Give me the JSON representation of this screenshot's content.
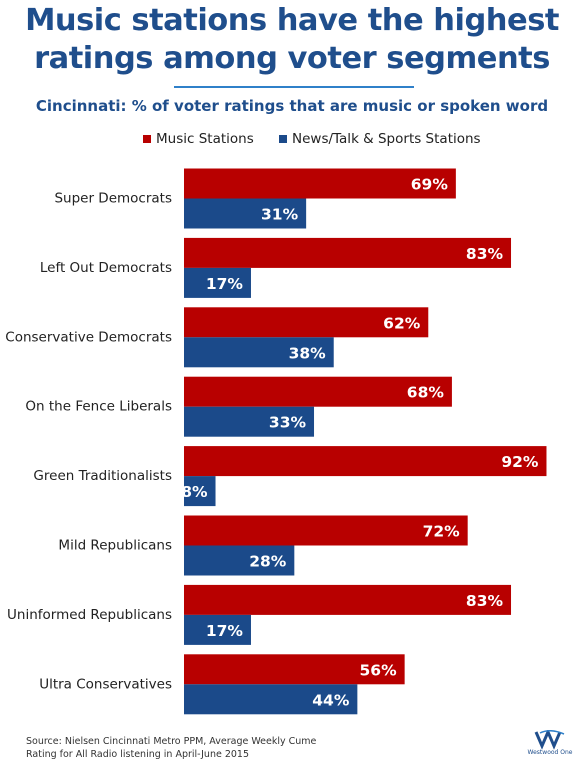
{
  "title_line1": "Music stations have the highest",
  "title_line2": "ratings among voter segments",
  "subtitle": "Cincinnati: % of voter ratings that are music or spoken word",
  "source_line1": "Source: Nielsen Cincinnati Metro PPM, Average Weekly Cume",
  "source_line2": "Rating for All Radio listening in April-June 2015",
  "logo_text": "Westwood One",
  "colors": {
    "music": "#b80000",
    "news": "#1b4a8a",
    "title": "#1f4e8c"
  },
  "chart_data": {
    "type": "bar",
    "orientation": "horizontal",
    "categories": [
      "Super Democrats",
      "Left Out Democrats",
      "Conservative Democrats",
      "On the Fence Liberals",
      "Green Traditionalists",
      "Mild Republicans",
      "Uninformed Republicans",
      "Ultra Conservatives"
    ],
    "series": [
      {
        "name": "Music Stations",
        "values": [
          69,
          83,
          62,
          68,
          92,
          72,
          83,
          56
        ],
        "labels": [
          "69%",
          "83%",
          "62%",
          "68%",
          "92%",
          "72%",
          "83%",
          "56%"
        ]
      },
      {
        "name": "News/Talk & Sports Stations",
        "values": [
          31,
          17,
          38,
          33,
          8,
          28,
          17,
          44
        ],
        "labels": [
          "31%",
          "17%",
          "38%",
          "33%",
          "8%",
          "28%",
          "17%",
          "44%"
        ]
      }
    ],
    "title": "Music stations have the highest ratings among voter segments",
    "subtitle": "Cincinnati: % of voter ratings that are music or spoken word",
    "xlim": [
      0,
      100
    ],
    "legend": "top",
    "grid": false
  }
}
